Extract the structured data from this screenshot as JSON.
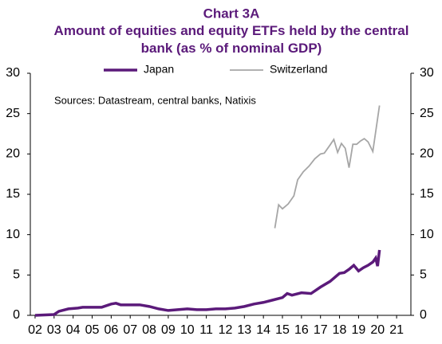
{
  "chart_data": {
    "type": "line",
    "title": "Chart 3A",
    "subtitle": "Amount of equities and equity ETFs held by the central bank (as % of nominal GDP)",
    "annotation": "Sources: Datastream, central banks, Natixis",
    "legend": "top",
    "xlim": [
      1.75,
      21.75
    ],
    "xticks": [
      {
        "value": 2,
        "label": "02"
      },
      {
        "value": 3,
        "label": "03"
      },
      {
        "value": 4,
        "label": "04"
      },
      {
        "value": 5,
        "label": "05"
      },
      {
        "value": 6,
        "label": "06"
      },
      {
        "value": 7,
        "label": "07"
      },
      {
        "value": 8,
        "label": "08"
      },
      {
        "value": 9,
        "label": "09"
      },
      10,
      11,
      12,
      13,
      14,
      15,
      16,
      17,
      18,
      19,
      20,
      21
    ],
    "ylim": [
      0,
      30
    ],
    "yticks": [
      0,
      5,
      10,
      15,
      20,
      25,
      30
    ],
    "y2lim": [
      0,
      30
    ],
    "y2ticks": [
      0,
      5,
      10,
      15,
      20,
      25,
      30
    ],
    "series": [
      {
        "name": "Japan",
        "color": "#5b1a7a",
        "x": [
          2.0,
          3.0,
          3.25,
          3.75,
          4.25,
          4.5,
          5.0,
          5.5,
          6.0,
          6.25,
          6.5,
          7.0,
          7.5,
          8.0,
          8.5,
          9.0,
          9.5,
          10.0,
          10.5,
          11.0,
          11.5,
          12.0,
          12.5,
          13.0,
          13.5,
          14.0,
          14.5,
          15.0,
          15.25,
          15.5,
          16.0,
          16.5,
          17.0,
          17.5,
          18.0,
          18.25,
          18.5,
          18.75,
          19.0,
          19.25,
          19.5,
          19.75,
          19.9,
          20.0,
          20.1
        ],
        "values": [
          0,
          0.1,
          0.5,
          0.8,
          0.9,
          1.0,
          1.0,
          1.0,
          1.4,
          1.5,
          1.3,
          1.3,
          1.3,
          1.1,
          0.8,
          0.6,
          0.7,
          0.8,
          0.7,
          0.7,
          0.8,
          0.8,
          0.9,
          1.1,
          1.4,
          1.6,
          1.9,
          2.2,
          2.7,
          2.5,
          2.8,
          2.7,
          3.5,
          4.2,
          5.2,
          5.3,
          5.7,
          6.2,
          5.5,
          5.9,
          6.2,
          6.6,
          7.1,
          6.1,
          8.1
        ]
      },
      {
        "name": "Switzerland",
        "color": "#a6a6a6",
        "x": [
          14.6,
          14.8,
          15.0,
          15.3,
          15.6,
          15.8,
          16.1,
          16.4,
          16.7,
          17.0,
          17.2,
          17.5,
          17.7,
          17.9,
          18.1,
          18.3,
          18.5,
          18.7,
          18.9,
          19.1,
          19.3,
          19.5,
          19.75,
          20.1
        ],
        "values": [
          10.8,
          13.7,
          13.2,
          13.8,
          14.8,
          16.8,
          17.8,
          18.5,
          19.4,
          20.0,
          20.1,
          21.1,
          21.8,
          20.2,
          21.3,
          20.7,
          18.3,
          21.2,
          21.2,
          21.6,
          21.9,
          21.5,
          20.3,
          26.0
        ]
      }
    ]
  }
}
